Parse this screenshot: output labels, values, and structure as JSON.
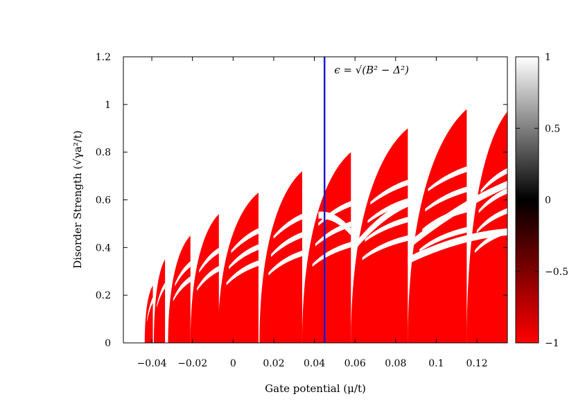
{
  "chart_data": {
    "type": "heatmap",
    "title": "",
    "xlabel": "Gate potential (μ/t)",
    "ylabel": "Disorder Strength (√γa²/t)",
    "xlim": [
      -0.054,
      0.135
    ],
    "ylim": [
      0,
      1.2
    ],
    "xticks": [
      {
        "v": -0.04,
        "label": "−0.04"
      },
      {
        "v": -0.02,
        "label": "−0.02"
      },
      {
        "v": 0,
        "label": "0"
      },
      {
        "v": 0.02,
        "label": "0.02"
      },
      {
        "v": 0.04,
        "label": "0.04"
      },
      {
        "v": 0.06,
        "label": "0.06"
      },
      {
        "v": 0.08,
        "label": "0.08"
      },
      {
        "v": 0.1,
        "label": "0.1"
      },
      {
        "v": 0.12,
        "label": "0.12"
      }
    ],
    "yticks": [
      {
        "v": 0,
        "label": "0"
      },
      {
        "v": 0.2,
        "label": "0.2"
      },
      {
        "v": 0.4,
        "label": "0.4"
      },
      {
        "v": 0.6,
        "label": "0.6"
      },
      {
        "v": 0.8,
        "label": "0.8"
      },
      {
        "v": 1.0,
        "label": "1"
      },
      {
        "v": 1.2,
        "label": "1.2"
      }
    ],
    "colorbar": {
      "min": -1,
      "max": 1,
      "ticks": [
        {
          "v": 1,
          "label": "1"
        },
        {
          "v": 0.5,
          "label": "0.5"
        },
        {
          "v": 0,
          "label": "0"
        },
        {
          "v": -0.5,
          "label": "−0.5"
        },
        {
          "v": -1,
          "label": "−1"
        }
      ],
      "colors": {
        "low": "#ff0000",
        "mid": "#000000",
        "high": "#ffffff"
      }
    },
    "region_color": "#ff0000",
    "lobes": [
      {
        "x0": -0.0435,
        "x1": -0.0395,
        "h": 0.24
      },
      {
        "x0": -0.039,
        "x1": -0.0335,
        "h": 0.35
      },
      {
        "x0": -0.032,
        "x1": -0.021,
        "h": 0.45
      },
      {
        "x0": -0.021,
        "x1": -0.007,
        "h": 0.54
      },
      {
        "x0": -0.0075,
        "x1": 0.0125,
        "h": 0.63
      },
      {
        "x0": 0.013,
        "x1": 0.034,
        "h": 0.72
      },
      {
        "x0": 0.034,
        "x1": 0.058,
        "h": 0.8
      },
      {
        "x0": 0.058,
        "x1": 0.086,
        "h": 0.9
      },
      {
        "x0": 0.086,
        "x1": 0.115,
        "h": 0.98
      },
      {
        "x0": 0.115,
        "x1": 0.135,
        "h": 0.97
      }
    ],
    "white_bands": [
      {
        "x0": 0.042,
        "x1": 0.058,
        "y0": 0.55,
        "y1": 0.48
      },
      {
        "x0": 0.06,
        "x1": 0.086,
        "y0": 0.42,
        "y1": 0.6
      },
      {
        "x0": 0.086,
        "x1": 0.135,
        "y0": 0.42,
        "y1": 0.68
      },
      {
        "x0": 0.086,
        "x1": 0.135,
        "y0": 0.36,
        "y1": 0.48
      }
    ],
    "vertical_line": {
      "x": 0.045,
      "color": "#1a1acd",
      "label": "ϵ = √(B² − Δ²)"
    }
  }
}
